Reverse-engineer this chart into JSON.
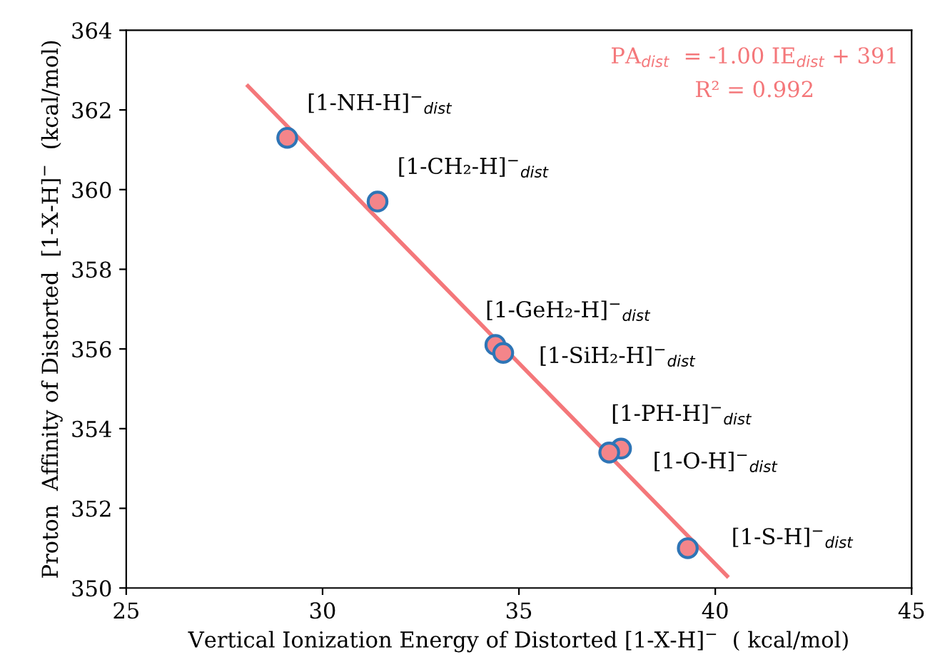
{
  "chart_data": {
    "type": "scatter",
    "xlabel": "Vertical Ionization Energy of Distorted [1-X-H]$^{−}$  ( kcal/mol)",
    "ylabel": "Proton  Affinity of Distorted  [1-X-H]$^{−}$  (kcal/mol)",
    "xlim": [
      25,
      45
    ],
    "xticks": [
      25,
      30,
      35,
      40,
      45
    ],
    "ylim": [
      350,
      364
    ],
    "yticks": [
      350,
      352,
      354,
      356,
      358,
      360,
      362,
      364
    ],
    "grid": false,
    "series": [
      {
        "color": "#f4858a",
        "marker": "circle",
        "x": [
          29.1,
          31.4,
          34.4,
          34.6,
          37.6,
          37.3,
          39.3
        ],
        "values": [
          361.3,
          359.7,
          356.1,
          355.9,
          353.5,
          353.4,
          351.0
        ]
      },
      {
        "type": "line",
        "color": "#f4777a",
        "x": [
          28.1,
          40.3
        ],
        "values": [
          362.6,
          350.3
        ]
      }
    ],
    "annotations": [
      {
        "text": "[1-NH-H]$^{−}$$_{dist}$",
        "x": 29.1,
        "y": 361.3
      },
      {
        "text": "[1-CH₂-H]$^{−}$$_{dist}$",
        "x": 31.4,
        "y": 359.7
      },
      {
        "text": "[1-GeH₂-H]$^{−}$$_{dist}$",
        "x": 34.4,
        "y": 356.1
      },
      {
        "text": "[1-SiH₂-H]$^{−}$$_{dist}$",
        "x": 34.6,
        "y": 355.9
      },
      {
        "text": "[1-PH-H]$^{−}$$_{dist}$",
        "x": 37.6,
        "y": 353.5
      },
      {
        "text": "[1-O-H]$^{−}$$_{dist}$",
        "x": 37.3,
        "y": 353.4
      },
      {
        "text": "[1-S-H]$^{−}$$_{dist}$",
        "x": 39.3,
        "y": 351.0
      },
      "PA$_{dist}$  = -1.00 IE$_{dist}$ + 391",
      "R² = 0.992"
    ]
  }
}
